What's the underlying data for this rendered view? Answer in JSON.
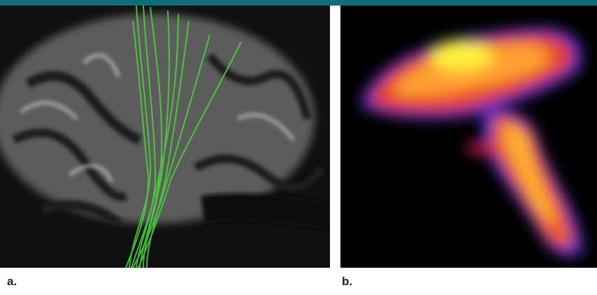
{
  "panels": [
    {
      "label": "a."
    },
    {
      "label": "b."
    }
  ]
}
